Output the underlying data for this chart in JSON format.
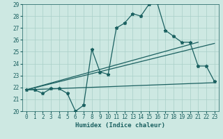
{
  "xlabel": "Humidex (Indice chaleur)",
  "xlim": [
    -0.5,
    23.5
  ],
  "ylim": [
    20,
    29
  ],
  "xticks": [
    0,
    1,
    2,
    3,
    4,
    5,
    6,
    7,
    8,
    9,
    10,
    11,
    12,
    13,
    14,
    15,
    16,
    17,
    18,
    19,
    20,
    21,
    22,
    23
  ],
  "yticks": [
    20,
    21,
    22,
    23,
    24,
    25,
    26,
    27,
    28,
    29
  ],
  "bg_color": "#cde8e2",
  "grid_color": "#a8cfc8",
  "line_color": "#1a6060",
  "main_x": [
    0,
    1,
    2,
    3,
    4,
    5,
    6,
    7,
    8,
    9,
    10,
    11,
    12,
    13,
    14,
    15,
    16,
    17,
    18,
    19,
    20,
    21,
    22,
    23
  ],
  "main_y": [
    21.8,
    21.8,
    21.5,
    21.9,
    21.9,
    21.5,
    20.0,
    20.5,
    25.2,
    23.3,
    23.1,
    27.0,
    27.4,
    28.2,
    28.0,
    29.0,
    29.1,
    26.8,
    26.3,
    25.8,
    25.8,
    23.8,
    23.8,
    22.5
  ],
  "trend1_x": [
    0,
    23
  ],
  "trend1_y": [
    21.8,
    22.4
  ],
  "trend2_x": [
    0,
    21
  ],
  "trend2_y": [
    21.8,
    25.8
  ],
  "trend3_x": [
    0,
    23
  ],
  "trend3_y": [
    21.8,
    25.7
  ]
}
